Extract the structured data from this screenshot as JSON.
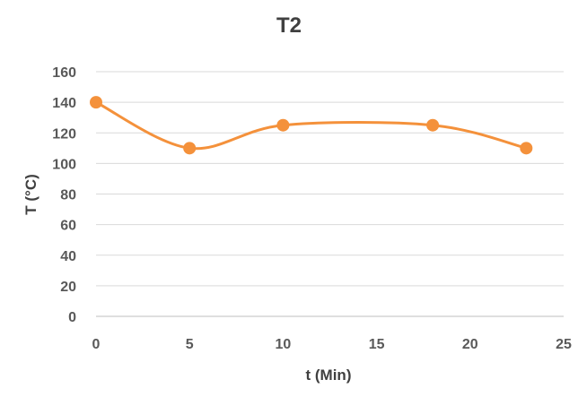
{
  "chart_data": {
    "type": "line",
    "title": "T2",
    "xlabel": "t (Min)",
    "ylabel": "T (°C)",
    "xlim": [
      0,
      25
    ],
    "ylim": [
      0,
      160
    ],
    "xticks": [
      0,
      5,
      10,
      15,
      20,
      25
    ],
    "yticks": [
      0,
      20,
      40,
      60,
      80,
      100,
      120,
      140,
      160
    ],
    "grid": true,
    "smooth": true,
    "series": [
      {
        "color": "#f4913b",
        "x": [
          0,
          5,
          10,
          18,
          23
        ],
        "y": [
          140,
          110,
          125,
          125,
          110
        ]
      }
    ]
  }
}
